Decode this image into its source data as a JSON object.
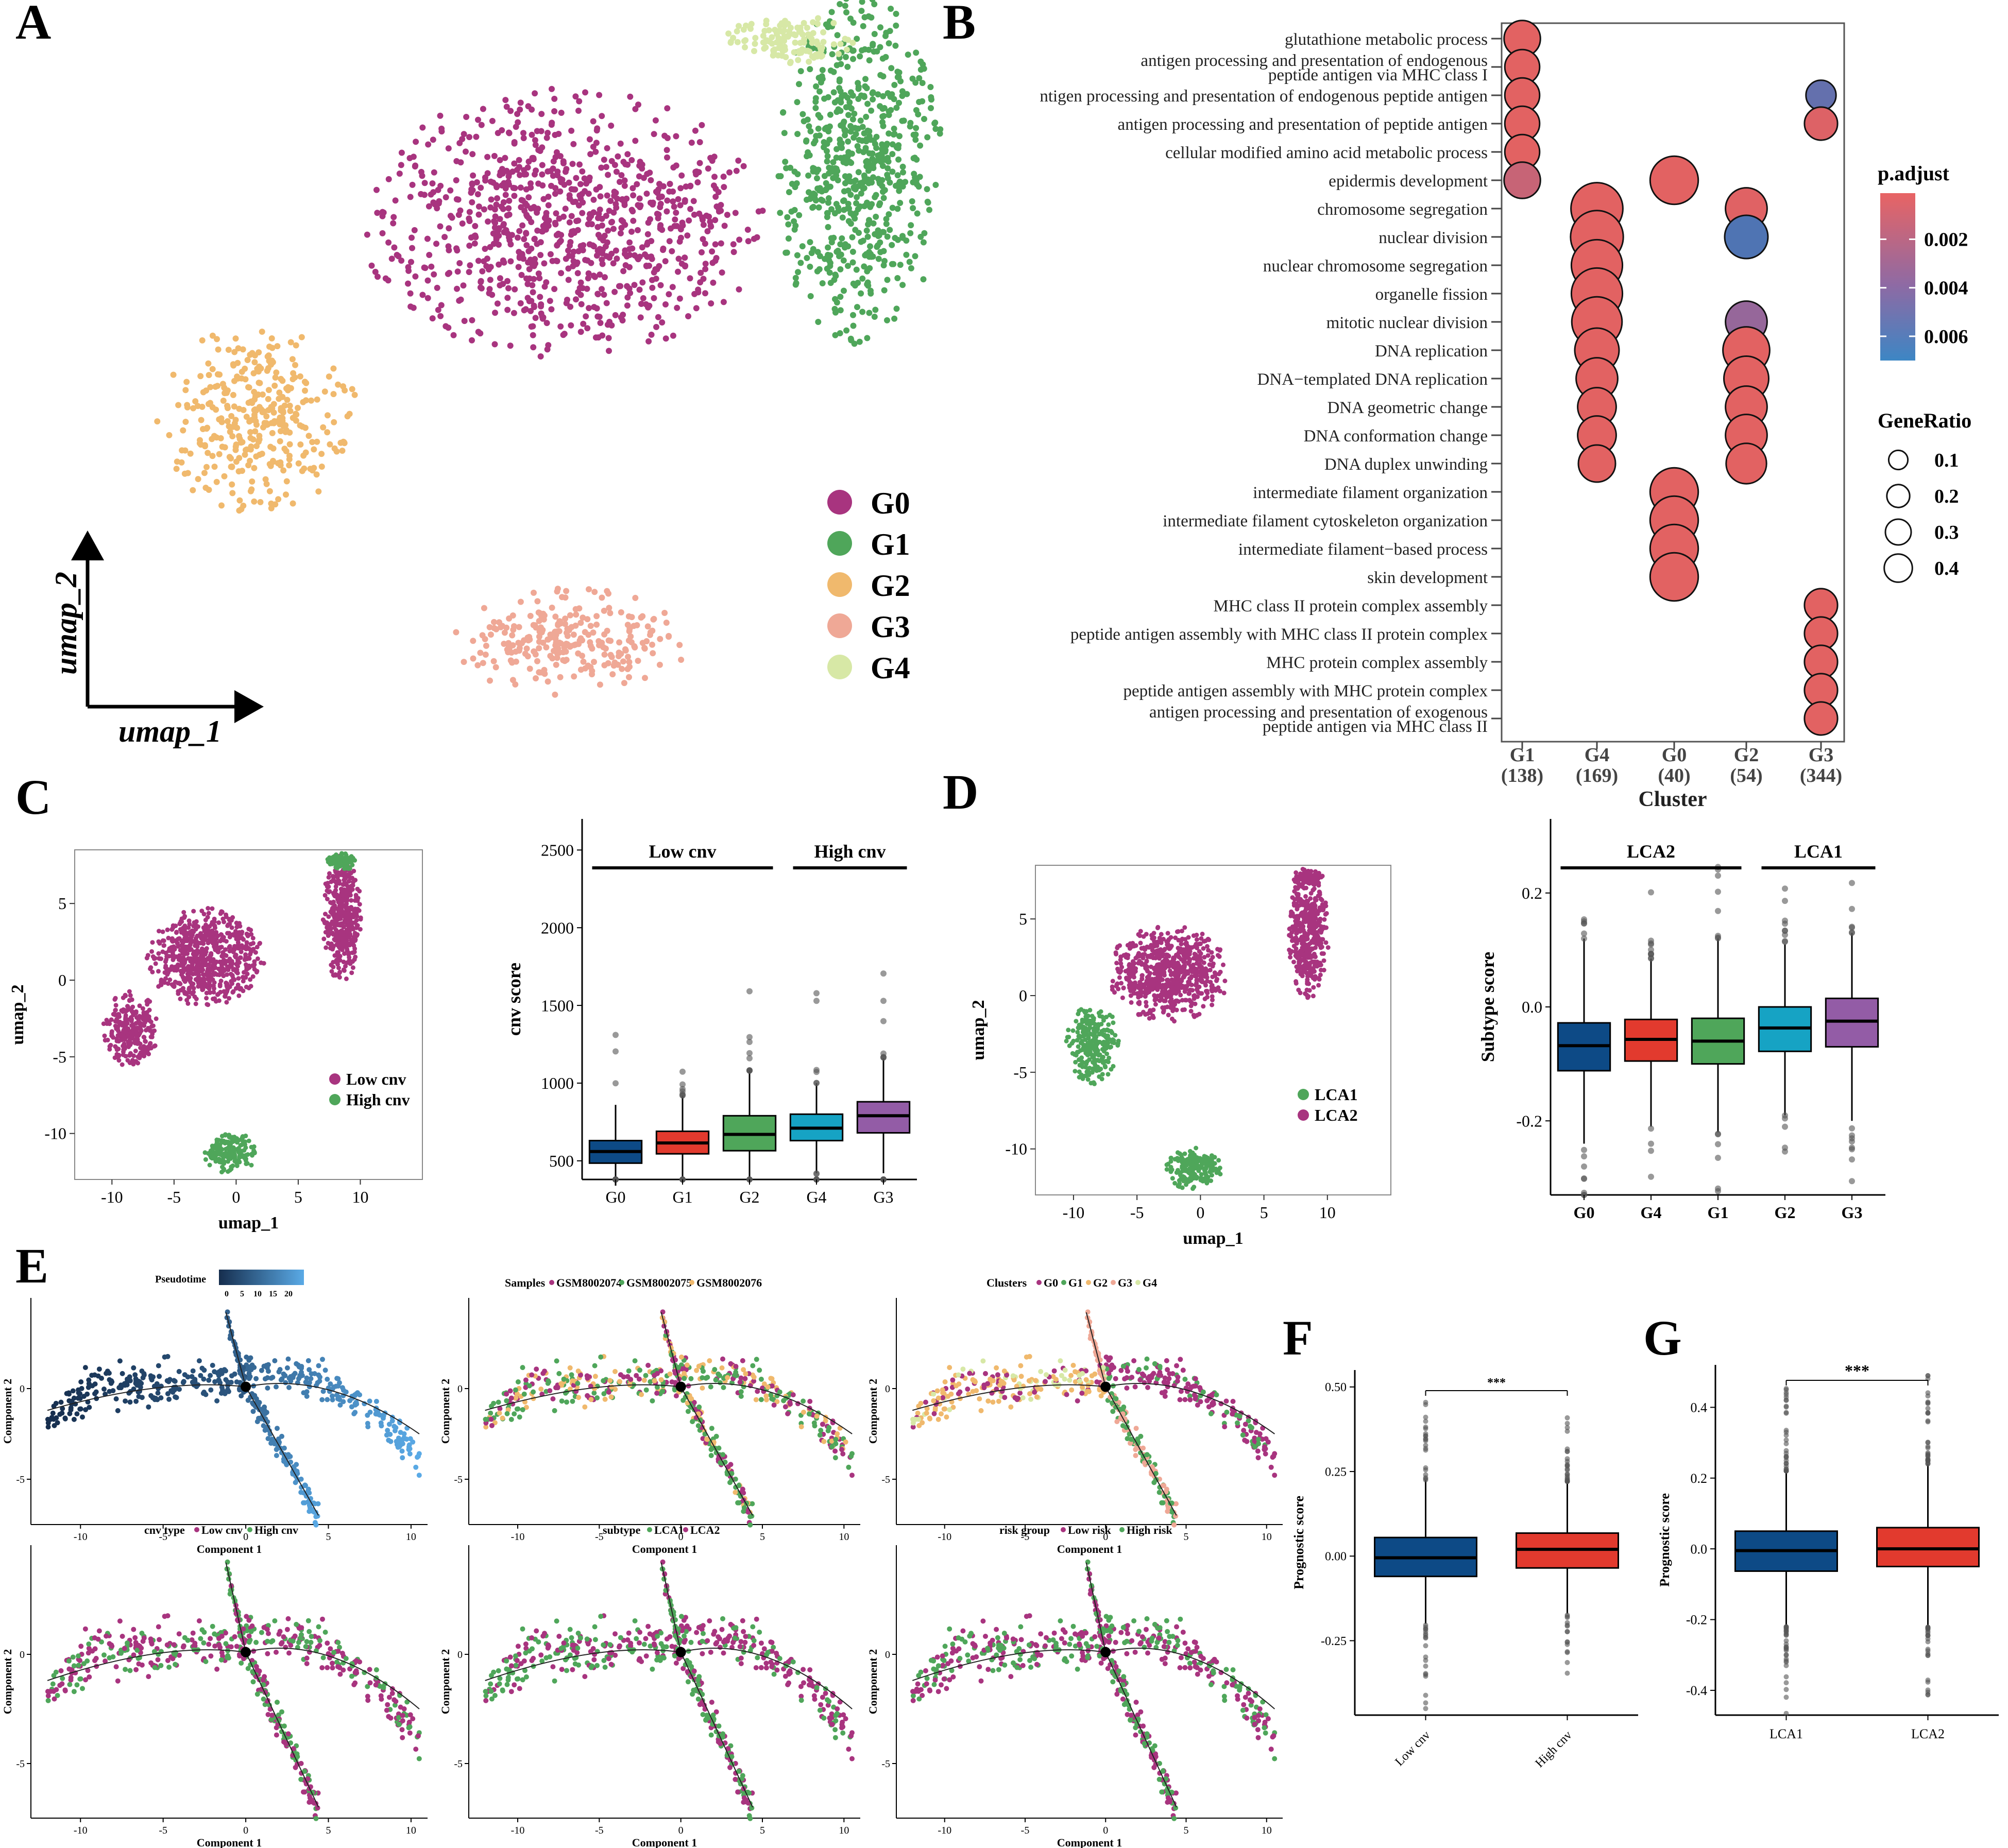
{
  "palette": {
    "G0": "#a8347f",
    "G1": "#4fa65a",
    "G2": "#f0b96d",
    "G3": "#efa896",
    "G4": "#d7e8a6",
    "red": "#e23a2e",
    "blue": "#0d4a86",
    "cyan": "#16a3c4",
    "purple": "#935ca6",
    "dotRed": "#dd5a5a",
    "dotBlue": "#4c76ae",
    "lowcnv": "#a8347f",
    "highcnv": "#4fa65a"
  },
  "panels": {
    "A": "A",
    "B": "B",
    "C": "C",
    "D": "D",
    "E": "E",
    "F": "F",
    "G": "G"
  },
  "chart_data": [
    {
      "id": "A",
      "type": "scatter",
      "title": "",
      "xlabel": "umap_1",
      "ylabel": "umap_2",
      "legend": {
        "position": "right",
        "entries": [
          "G0",
          "G1",
          "G2",
          "G3",
          "G4"
        ]
      },
      "clusters": [
        {
          "name": "G0",
          "cx": 0.55,
          "cy": 0.7,
          "rx": 0.24,
          "ry": 0.2,
          "n": 900
        },
        {
          "name": "G1",
          "cx": 0.9,
          "cy": 0.78,
          "rx": 0.1,
          "ry": 0.26,
          "n": 650
        },
        {
          "name": "G2",
          "cx": 0.19,
          "cy": 0.41,
          "rx": 0.12,
          "ry": 0.14,
          "n": 350
        },
        {
          "name": "G3",
          "cx": 0.56,
          "cy": 0.08,
          "rx": 0.14,
          "ry": 0.08,
          "n": 260
        },
        {
          "name": "G4",
          "cx": 0.82,
          "cy": 0.97,
          "rx": 0.08,
          "ry": 0.04,
          "n": 120
        }
      ]
    },
    {
      "id": "B",
      "type": "scatter",
      "subtype": "dotplot",
      "xlabel": "Cluster",
      "clusters": [
        "G1",
        "G4",
        "G0",
        "G2",
        "G3"
      ],
      "cluster_counts": [
        "(138)",
        "(169)",
        "(40)",
        "(54)",
        "(344)"
      ],
      "terms": [
        "glutathione metabolic process",
        "antigen processing and presentation of endogenous|peptide antigen via MHC class I",
        "ntigen processing and presentation of endogenous peptide antigen",
        "antigen processing and presentation of peptide antigen",
        "cellular modified amino acid metabolic process",
        "epidermis development",
        "chromosome segregation",
        "nuclear division",
        "nuclear chromosome segregation",
        "organelle fission",
        "mitotic nuclear division",
        "DNA replication",
        "DNA−templated DNA replication",
        "DNA geometric change",
        "DNA conformation change",
        "DNA duplex unwinding",
        "intermediate filament organization",
        "intermediate filament cytoskeleton organization",
        "intermediate filament−based process",
        "skin development",
        "MHC class II protein complex assembly",
        "peptide antigen assembly with MHC class II protein complex",
        "MHC protein complex assembly",
        "peptide antigen assembly with MHC protein complex",
        "antigen processing and presentation of exogenous|peptide antigen via MHC class II"
      ],
      "dots": [
        {
          "term": 0,
          "cluster": 0,
          "ratio": 0.12,
          "padj": 0.0001
        },
        {
          "term": 1,
          "cluster": 0,
          "ratio": 0.1,
          "padj": 0.0001
        },
        {
          "term": 2,
          "cluster": 0,
          "ratio": 0.1,
          "padj": 0.0001
        },
        {
          "term": 3,
          "cluster": 0,
          "ratio": 0.1,
          "padj": 0.0001
        },
        {
          "term": 4,
          "cluster": 0,
          "ratio": 0.1,
          "padj": 0.0001
        },
        {
          "term": 5,
          "cluster": 0,
          "ratio": 0.12,
          "padj": 0.0012
        },
        {
          "term": 2,
          "cluster": 4,
          "ratio": 0.05,
          "padj": 0.0053
        },
        {
          "term": 3,
          "cluster": 4,
          "ratio": 0.08,
          "padj": 0.0003
        },
        {
          "term": 6,
          "cluster": 1,
          "ratio": 0.42,
          "padj": 0.0001
        },
        {
          "term": 7,
          "cluster": 1,
          "ratio": 0.44,
          "padj": 0.0001
        },
        {
          "term": 8,
          "cluster": 1,
          "ratio": 0.4,
          "padj": 0.0001
        },
        {
          "term": 9,
          "cluster": 1,
          "ratio": 0.4,
          "padj": 0.0001
        },
        {
          "term": 10,
          "cluster": 1,
          "ratio": 0.38,
          "padj": 0.0001
        },
        {
          "term": 11,
          "cluster": 1,
          "ratio": 0.25,
          "padj": 0.0001
        },
        {
          "term": 12,
          "cluster": 1,
          "ratio": 0.2,
          "padj": 0.0001
        },
        {
          "term": 13,
          "cluster": 1,
          "ratio": 0.15,
          "padj": 0.0001
        },
        {
          "term": 14,
          "cluster": 1,
          "ratio": 0.15,
          "padj": 0.0001
        },
        {
          "term": 15,
          "cluster": 1,
          "ratio": 0.13,
          "padj": 0.0001
        },
        {
          "term": 5,
          "cluster": 2,
          "ratio": 0.33,
          "padj": 0.0001
        },
        {
          "term": 16,
          "cluster": 2,
          "ratio": 0.33,
          "padj": 0.0001
        },
        {
          "term": 17,
          "cluster": 2,
          "ratio": 0.33,
          "padj": 0.0001
        },
        {
          "term": 18,
          "cluster": 2,
          "ratio": 0.33,
          "padj": 0.0001
        },
        {
          "term": 19,
          "cluster": 2,
          "ratio": 0.33,
          "padj": 0.0001
        },
        {
          "term": 6,
          "cluster": 3,
          "ratio": 0.2,
          "padj": 0.0002
        },
        {
          "term": 7,
          "cluster": 3,
          "ratio": 0.23,
          "padj": 0.0062
        },
        {
          "term": 10,
          "cluster": 3,
          "ratio": 0.2,
          "padj": 0.0032
        },
        {
          "term": 11,
          "cluster": 3,
          "ratio": 0.3,
          "padj": 0.0001
        },
        {
          "term": 12,
          "cluster": 3,
          "ratio": 0.26,
          "padj": 0.0001
        },
        {
          "term": 13,
          "cluster": 3,
          "ratio": 0.2,
          "padj": 0.0001
        },
        {
          "term": 14,
          "cluster": 3,
          "ratio": 0.2,
          "padj": 0.0001
        },
        {
          "term": 15,
          "cluster": 3,
          "ratio": 0.18,
          "padj": 0.0001
        },
        {
          "term": 20,
          "cluster": 4,
          "ratio": 0.08,
          "padj": 0.0001
        },
        {
          "term": 21,
          "cluster": 4,
          "ratio": 0.08,
          "padj": 0.0001
        },
        {
          "term": 22,
          "cluster": 4,
          "ratio": 0.08,
          "padj": 0.0001
        },
        {
          "term": 23,
          "cluster": 4,
          "ratio": 0.08,
          "padj": 0.0001
        },
        {
          "term": 24,
          "cluster": 4,
          "ratio": 0.08,
          "padj": 0.0001
        }
      ],
      "padj_legend": {
        "title": "p.adjust",
        "ticks": [
          "0.002",
          "0.004",
          "0.006"
        ],
        "range": [
          0.0001,
          0.007
        ]
      },
      "ratio_legend": {
        "title": "GeneRatio",
        "values": [
          0.1,
          0.2,
          0.3,
          0.4
        ],
        "labels": [
          "0.1",
          "0.2",
          "0.3",
          "0.4"
        ]
      }
    },
    {
      "id": "C-umap",
      "type": "scatter",
      "xlabel": "umap_1",
      "ylabel": "umap_2",
      "xlim": [
        -13,
        15
      ],
      "ylim": [
        -13,
        8.5
      ],
      "xticks": [
        "-10",
        "-5",
        "0",
        "5",
        "10"
      ],
      "yticks": [
        "5",
        "0",
        "-5",
        "-10"
      ],
      "xtick_values": [
        -10,
        -5,
        0,
        5,
        10
      ],
      "ytick_values": [
        5,
        0,
        -5,
        -10
      ],
      "legend": {
        "position": "bottom-right",
        "entries": [
          "Low cnv",
          "High cnv"
        ]
      }
    },
    {
      "id": "C-box",
      "type": "bar",
      "subtype": "boxplot",
      "xlabel": "",
      "ylabel": "cnv score",
      "ylim": [
        380,
        2700
      ],
      "yticks": [
        "500",
        "1000",
        "1500",
        "2000",
        "2500"
      ],
      "ytick_values": [
        500,
        1000,
        1500,
        2000,
        2500
      ],
      "categories": [
        "G0",
        "G1",
        "G2",
        "G4",
        "G3"
      ],
      "boxes": [
        {
          "name": "G0",
          "q1": 485,
          "median": 560,
          "q3": 630,
          "lo": 340,
          "hi": 860
        },
        {
          "name": "G1",
          "q1": 545,
          "median": 615,
          "q3": 690,
          "lo": 395,
          "hi": 920
        },
        {
          "name": "G2",
          "q1": 565,
          "median": 670,
          "q3": 790,
          "lo": 380,
          "hi": 1080
        },
        {
          "name": "G4",
          "q1": 630,
          "median": 710,
          "q3": 800,
          "lo": 420,
          "hi": 1000
        },
        {
          "name": "G3",
          "q1": 680,
          "median": 790,
          "q3": 880,
          "lo": 420,
          "hi": 1160
        }
      ],
      "groups": [
        {
          "label": "Low cnv",
          "from": 0,
          "to": 2
        },
        {
          "label": "High cnv",
          "from": 3,
          "to": 4
        }
      ]
    },
    {
      "id": "D-umap",
      "type": "scatter",
      "xlabel": "umap_1",
      "ylabel": "umap_2",
      "xlim": [
        -13,
        15
      ],
      "ylim": [
        -13,
        8.5
      ],
      "xticks": [
        "-10",
        "-5",
        "0",
        "5",
        "10"
      ],
      "yticks": [
        "5",
        "0",
        "-5",
        "-10"
      ],
      "xtick_values": [
        -10,
        -5,
        0,
        5,
        10
      ],
      "ytick_values": [
        5,
        0,
        -5,
        -10
      ],
      "legend": {
        "position": "bottom-right",
        "entries": [
          "LCA1",
          "LCA2"
        ]
      }
    },
    {
      "id": "D-box",
      "type": "bar",
      "subtype": "boxplot",
      "xlabel": "",
      "ylabel": "Subtype score",
      "ylim": [
        -0.33,
        0.33
      ],
      "yticks": [
        "0.2",
        "0.0",
        "-0.2"
      ],
      "ytick_values": [
        0.2,
        0.0,
        -0.2
      ],
      "categories": [
        "G0",
        "G4",
        "G1",
        "G2",
        "G3"
      ],
      "boxes": [
        {
          "name": "G0",
          "q1": -0.112,
          "median": -0.068,
          "q3": -0.028,
          "lo": -0.24,
          "hi": 0.12
        },
        {
          "name": "G4",
          "q1": -0.095,
          "median": -0.057,
          "q3": -0.022,
          "lo": -0.21,
          "hi": 0.085
        },
        {
          "name": "G1",
          "q1": -0.1,
          "median": -0.06,
          "q3": -0.02,
          "lo": -0.22,
          "hi": 0.12
        },
        {
          "name": "G2",
          "q1": -0.078,
          "median": -0.037,
          "q3": 0.0,
          "lo": -0.19,
          "hi": 0.11
        },
        {
          "name": "G3",
          "q1": -0.07,
          "median": -0.025,
          "q3": 0.015,
          "lo": -0.2,
          "hi": 0.13
        }
      ],
      "groups": [
        {
          "label": "LCA2",
          "from": 0,
          "to": 2
        },
        {
          "label": "LCA1",
          "from": 3,
          "to": 4
        }
      ]
    },
    {
      "id": "E",
      "type": "line",
      "subtype": "trajectory",
      "xlabel": "Component 1",
      "ylabel": "Component 2",
      "xlim": [
        -13,
        11
      ],
      "ylim": [
        -7.5,
        5
      ],
      "xticks": [
        "-10",
        "-5",
        "0",
        "5",
        "10"
      ],
      "yticks": [
        "0",
        "-5"
      ],
      "xtick_values": [
        -10,
        -5,
        0,
        5,
        10
      ],
      "ytick_values": [
        0,
        -5
      ],
      "subplots": [
        {
          "title": "Pseudotime",
          "legend": [
            "0",
            "5",
            "10",
            "15",
            "20"
          ]
        },
        {
          "title": "Samples",
          "legend": [
            "GSM8002074",
            "GSM8002075",
            "GSM8002076"
          ]
        },
        {
          "title": "Clusters",
          "legend": [
            "G0",
            "G1",
            "G2",
            "G3",
            "G4"
          ]
        },
        {
          "title": "cnv type",
          "legend": [
            "Low cnv",
            "High cnv"
          ]
        },
        {
          "title": "subtype",
          "legend": [
            "LCA1",
            "LCA2"
          ]
        },
        {
          "title": "risk group",
          "legend": [
            "Low risk",
            "High risk"
          ]
        }
      ]
    },
    {
      "id": "F",
      "type": "bar",
      "subtype": "boxplot",
      "ylabel": "Prognostic score",
      "ylim": [
        -0.47,
        0.55
      ],
      "yticks": [
        "0.50",
        "0.25",
        "0.00",
        "-0.25"
      ],
      "ytick_values": [
        0.5,
        0.25,
        0.0,
        -0.25
      ],
      "categories": [
        "Low cnv",
        "High cnv"
      ],
      "boxes": [
        {
          "name": "Low cnv",
          "q1": -0.06,
          "median": -0.005,
          "q3": 0.055,
          "lo": -0.2,
          "hi": 0.225
        },
        {
          "name": "High cnv",
          "q1": -0.035,
          "median": 0.02,
          "q3": 0.068,
          "lo": -0.17,
          "hi": 0.22
        }
      ],
      "significance": "***"
    },
    {
      "id": "G",
      "type": "bar",
      "subtype": "boxplot",
      "ylabel": "Prognostic score",
      "ylim": [
        -0.47,
        0.52
      ],
      "yticks": [
        "0.4",
        "0.2",
        "0.0",
        "-0.2",
        "-0.4"
      ],
      "ytick_values": [
        0.4,
        0.2,
        0.0,
        -0.2,
        -0.4
      ],
      "categories": [
        "LCA1",
        "LCA2"
      ],
      "boxes": [
        {
          "name": "LCA1",
          "q1": -0.063,
          "median": -0.005,
          "q3": 0.05,
          "lo": -0.22,
          "hi": 0.22
        },
        {
          "name": "LCA2",
          "q1": -0.05,
          "median": 0.0,
          "q3": 0.06,
          "lo": -0.22,
          "hi": 0.24
        }
      ],
      "significance": "***"
    }
  ]
}
